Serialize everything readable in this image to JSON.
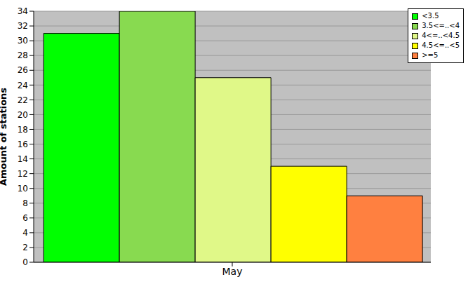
{
  "chart_data": {
    "type": "bar",
    "categories": [
      "May"
    ],
    "series": [
      {
        "name": "<3.5",
        "color": "#00ff00",
        "values": [
          31
        ]
      },
      {
        "name": "3.5<=..<4",
        "color": "#88da50",
        "values": [
          34
        ]
      },
      {
        "name": "4<=..<4.5",
        "color": "#e0f888",
        "values": [
          25
        ]
      },
      {
        "name": "4.5<=..<5",
        "color": "#ffff00",
        "values": [
          13
        ]
      },
      {
        "name": ">=5",
        "color": "#ff8040",
        "values": [
          9
        ]
      }
    ],
    "y_label": "Amount of stations",
    "ylim": [
      0,
      34
    ],
    "yticks": [
      0,
      2,
      4,
      6,
      8,
      10,
      12,
      14,
      16,
      18,
      20,
      22,
      24,
      26,
      28,
      30,
      32,
      34
    ],
    "grid": true,
    "legend": "top right"
  }
}
